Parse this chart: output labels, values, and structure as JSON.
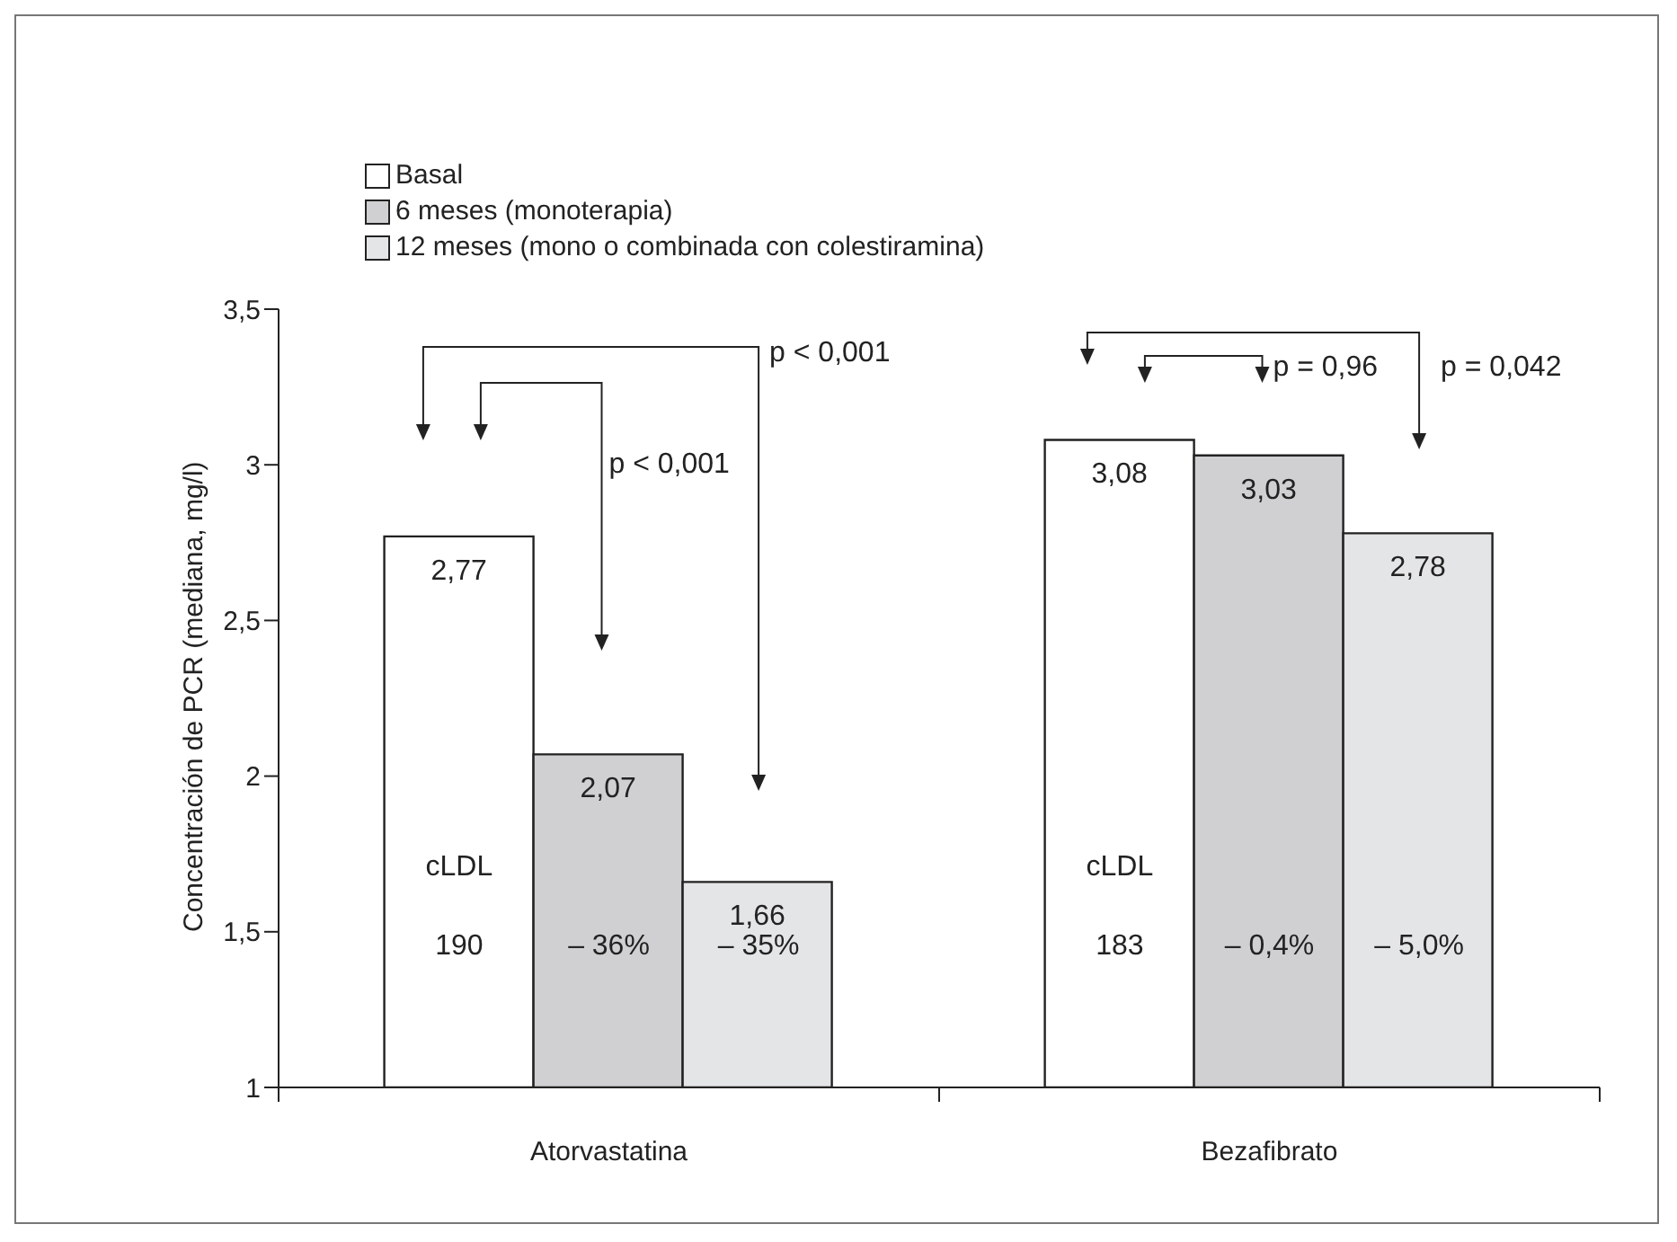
{
  "chart_data": {
    "type": "bar",
    "ylabel": "Concentración de PCR (mediana, mg/l)",
    "categories": [
      "Atorvastatina",
      "Bezafibrato"
    ],
    "series": [
      {
        "name": "Basal",
        "color": "#ffffff",
        "values": [
          2.77,
          3.08
        ],
        "value_labels": [
          "2,77",
          "3,08"
        ]
      },
      {
        "name": "6 meses (monoterapia)",
        "color": "#d0d0d2",
        "values": [
          2.07,
          3.03
        ],
        "value_labels": [
          "2,07",
          "3,03"
        ]
      },
      {
        "name": "12 meses (mono o combinada con colestiramina)",
        "color": "#e4e5e7",
        "values": [
          1.66,
          2.78
        ],
        "value_labels": [
          "1,66",
          "2,78"
        ]
      }
    ],
    "ylim": [
      1,
      3.5
    ],
    "yticks": [
      1,
      {
        "value": 1.5,
        "label": "1,5"
      },
      2,
      {
        "value": 2.5,
        "label": "2,5"
      },
      3,
      {
        "value": 3.5,
        "label": "3,5"
      }
    ],
    "legend": "top left",
    "annotations": [
      "cLDL",
      "190",
      "– 36%",
      "– 35%",
      "cLDL",
      "183",
      "– 0,4%",
      "– 5,0%",
      "p < 0,001",
      "p < 0,001",
      "p = 0,96",
      "p = 0,042"
    ]
  }
}
